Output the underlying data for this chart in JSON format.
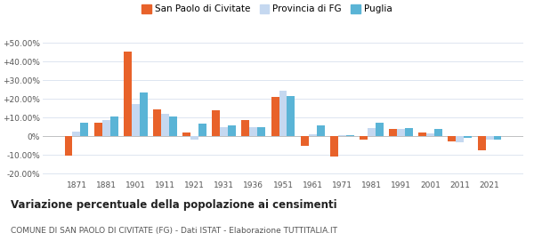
{
  "years": [
    1871,
    1881,
    1901,
    1911,
    1921,
    1931,
    1936,
    1951,
    1961,
    1971,
    1981,
    1991,
    2001,
    2011,
    2021
  ],
  "san_paolo": [
    -10.5,
    7.5,
    45.5,
    14.5,
    2.0,
    14.0,
    8.5,
    21.0,
    -5.0,
    -11.0,
    -2.0,
    4.0,
    2.0,
    -2.5,
    -7.5
  ],
  "provincia_fg": [
    2.5,
    8.5,
    17.5,
    12.0,
    -2.0,
    5.0,
    5.0,
    24.5,
    1.0,
    0.5,
    4.5,
    4.0,
    1.5,
    -3.0,
    -2.0
  ],
  "puglia": [
    7.5,
    10.5,
    23.5,
    10.5,
    7.0,
    6.0,
    5.0,
    21.5,
    6.0,
    0.5,
    7.5,
    4.5,
    4.0,
    -1.0,
    -2.0
  ],
  "color_san_paolo": "#e8622a",
  "color_provincia": "#c5d8f0",
  "color_puglia": "#5ab4d6",
  "title": "Variazione percentuale della popolazione ai censimenti",
  "subtitle": "COMUNE DI SAN PAOLO DI CIVITATE (FG) - Dati ISTAT - Elaborazione TUTTITALIA.IT",
  "ylabel_ticks": [
    "-20.00%",
    "-10.00%",
    "0%",
    "+10.00%",
    "+20.00%",
    "+30.00%",
    "+40.00%",
    "+50.00%"
  ],
  "ytick_vals": [
    -20,
    -10,
    0,
    10,
    20,
    30,
    40,
    50
  ],
  "ylim": [
    -23,
    57
  ],
  "legend_labels": [
    "San Paolo di Civitate",
    "Provincia di FG",
    "Puglia"
  ],
  "background_color": "#ffffff",
  "grid_color": "#d8e0ee"
}
